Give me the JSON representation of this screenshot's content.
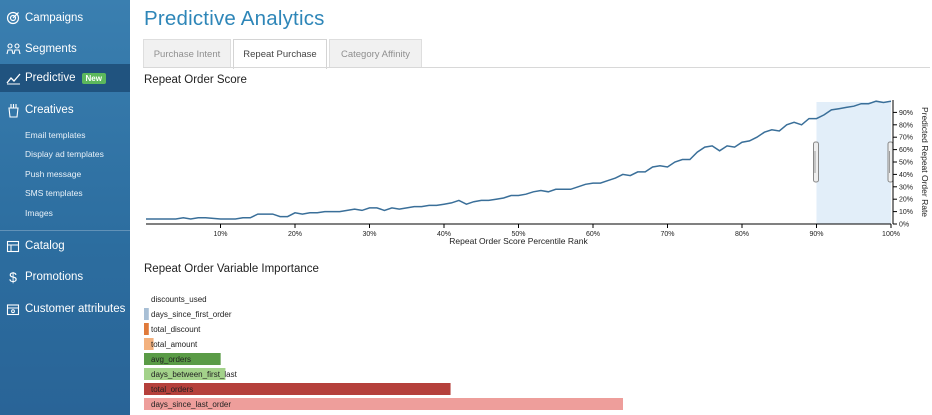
{
  "sidebar": {
    "items": [
      {
        "label": "Campaigns",
        "icon": "target-icon"
      },
      {
        "label": "Segments",
        "icon": "people-icon"
      },
      {
        "label": "Predictive",
        "icon": "trend-icon",
        "badge": "New"
      },
      {
        "label": "Creatives",
        "icon": "creatives-icon"
      },
      {
        "label": "Catalog",
        "icon": "catalog-icon"
      },
      {
        "label": "Promotions",
        "icon": "dollar-icon"
      },
      {
        "label": "Customer attributes",
        "icon": "attributes-icon"
      }
    ],
    "sub_items": [
      "Email templates",
      "Display ad templates",
      "Push message",
      "SMS templates",
      "Images"
    ]
  },
  "page": {
    "title": "Predictive Analytics"
  },
  "tabs": [
    {
      "label": "Purchase Intent"
    },
    {
      "label": "Repeat Purchase"
    },
    {
      "label": "Category Affinity"
    }
  ],
  "sections": {
    "score_title": "Repeat Order Score",
    "importance_title": "Repeat Order Variable Importance"
  },
  "chart_data": [
    {
      "type": "line",
      "title": "Repeat Order Score",
      "xlabel": "Repeat Order Score Percentile Rank",
      "ylabel": "Predicted Repeat Order Rate",
      "x_tick_labels": [
        "10%",
        "20%",
        "30%",
        "40%",
        "50%",
        "60%",
        "70%",
        "80%",
        "90%",
        "100%"
      ],
      "y_tick_labels": [
        "0%",
        "10%",
        "20%",
        "30%",
        "40%",
        "50%",
        "60%",
        "70%",
        "80%",
        "90%"
      ],
      "xlim": [
        0,
        100
      ],
      "ylim": [
        0,
        100
      ],
      "selected_range": [
        90,
        100
      ],
      "line_color": "#3a6f99",
      "x": [
        0,
        2,
        4,
        5,
        6,
        7,
        8,
        10,
        12,
        13,
        14,
        15,
        17,
        18,
        19,
        20,
        21,
        22,
        23,
        24,
        25,
        26,
        27,
        28,
        29,
        30,
        31,
        32,
        33,
        34,
        35,
        36,
        37,
        38,
        39,
        40,
        41,
        42,
        43,
        44,
        45,
        46,
        47,
        48,
        49,
        50,
        51,
        52,
        53,
        54,
        55,
        56,
        57,
        58,
        59,
        60,
        61,
        62,
        63,
        64,
        65,
        66,
        67,
        68,
        69,
        70,
        71,
        72,
        73,
        74,
        75,
        76,
        77,
        78,
        79,
        80,
        81,
        82,
        83,
        84,
        85,
        86,
        87,
        88,
        89,
        90,
        91,
        92,
        93,
        94,
        95,
        96,
        97,
        98,
        99,
        100
      ],
      "y": [
        4,
        4,
        4,
        5,
        4,
        5,
        5,
        4,
        4,
        5,
        5,
        8,
        8,
        6,
        6,
        9,
        8,
        9,
        9,
        10,
        10,
        10,
        11,
        12,
        11,
        13,
        13,
        11,
        13,
        12,
        13,
        14,
        14,
        15,
        15,
        16,
        17,
        19,
        16,
        18,
        19,
        19,
        20,
        21,
        23,
        23,
        24,
        26,
        27,
        26,
        28,
        28,
        28,
        30,
        32,
        33,
        33,
        35,
        37,
        40,
        39,
        42,
        42,
        46,
        47,
        46,
        50,
        52,
        52,
        58,
        62,
        63,
        59,
        63,
        62,
        66,
        67,
        70,
        74,
        76,
        75,
        80,
        82,
        80,
        85,
        85,
        88,
        92,
        93,
        94,
        95,
        97,
        97,
        99,
        98,
        99
      ]
    },
    {
      "type": "bar",
      "title": "Repeat Order Variable Importance",
      "categories": [
        "discounts_used",
        "days_since_first_order",
        "total_discount",
        "total_amount",
        "avg_orders",
        "days_between_first_last",
        "total_orders",
        "days_since_last_order"
      ],
      "values": [
        0,
        1,
        1,
        2,
        16,
        17,
        64,
        100
      ],
      "colors": [
        "#d6e3ee",
        "#a8bfd5",
        "#e07a3a",
        "#f3b17e",
        "#5a9b46",
        "#a3d28a",
        "#b5403b",
        "#ee9e9b"
      ]
    }
  ]
}
